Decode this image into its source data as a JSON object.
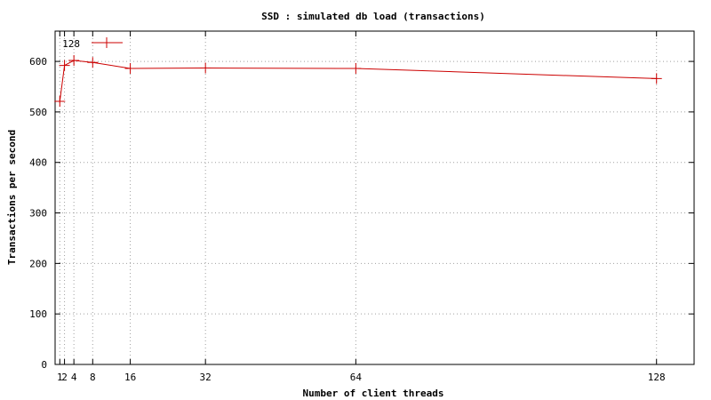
{
  "chart_data": {
    "type": "line",
    "title": "SSD : simulated db load (transactions)",
    "xlabel": "Number of client threads",
    "ylabel": "Transactions per second",
    "xlim": [
      0,
      136
    ],
    "ylim": [
      0,
      660
    ],
    "xticks": [
      1,
      2,
      4,
      8,
      16,
      32,
      64,
      128
    ],
    "yticks": [
      0,
      100,
      200,
      300,
      400,
      500,
      600
    ],
    "grid": true,
    "legend_position": "top-left",
    "series": [
      {
        "name": "128",
        "color": "#cc0000",
        "marker": "plus",
        "x": [
          1,
          2,
          4,
          8,
          16,
          32,
          64,
          128
        ],
        "y": [
          521,
          592,
          602,
          598,
          586,
          587,
          586,
          566
        ]
      }
    ]
  }
}
